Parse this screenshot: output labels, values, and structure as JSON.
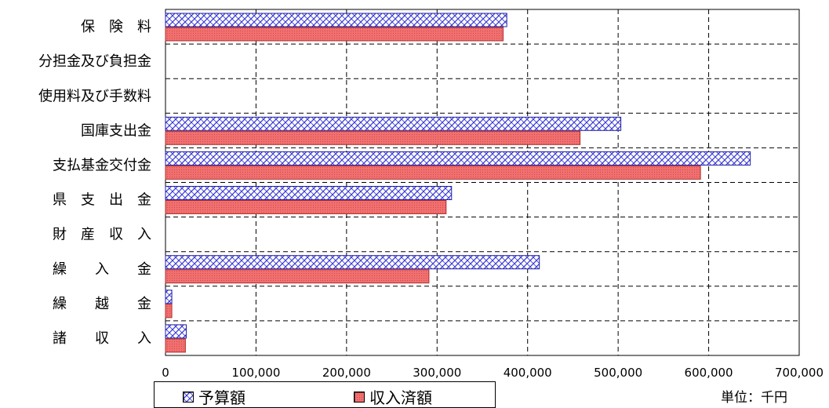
{
  "chart_data": {
    "type": "bar",
    "orientation": "horizontal",
    "categories": [
      "保　険　料",
      "分担金及び負担金",
      "使用料及び手数料",
      "国庫支出金",
      "支払基金交付金",
      "県　支　出　金",
      "財　産　収　入",
      "繰　　入　　金",
      "繰　　越　　金",
      "諸　　収　　入"
    ],
    "series": [
      {
        "name": "予算額",
        "color": "#3333cc",
        "pattern": "crosshatch",
        "values": [
          377000,
          0,
          0,
          503000,
          646000,
          316000,
          0,
          413000,
          7000,
          23000
        ]
      },
      {
        "name": "収入済額",
        "color": "#ff6666",
        "pattern": "dotted-solid",
        "values": [
          373000,
          0,
          0,
          458000,
          591000,
          310000,
          0,
          291000,
          7000,
          22000
        ]
      }
    ],
    "xlim": [
      0,
      700000
    ],
    "xticks": [
      0,
      100000,
      200000,
      300000,
      400000,
      500000,
      600000,
      700000
    ],
    "xtick_labels": [
      "0",
      "100,000",
      "200,000",
      "300,000",
      "400,000",
      "500,000",
      "600,000",
      "700,000"
    ],
    "grid": true,
    "legend_position": "bottom-left",
    "unit_label": "単位：千円"
  }
}
